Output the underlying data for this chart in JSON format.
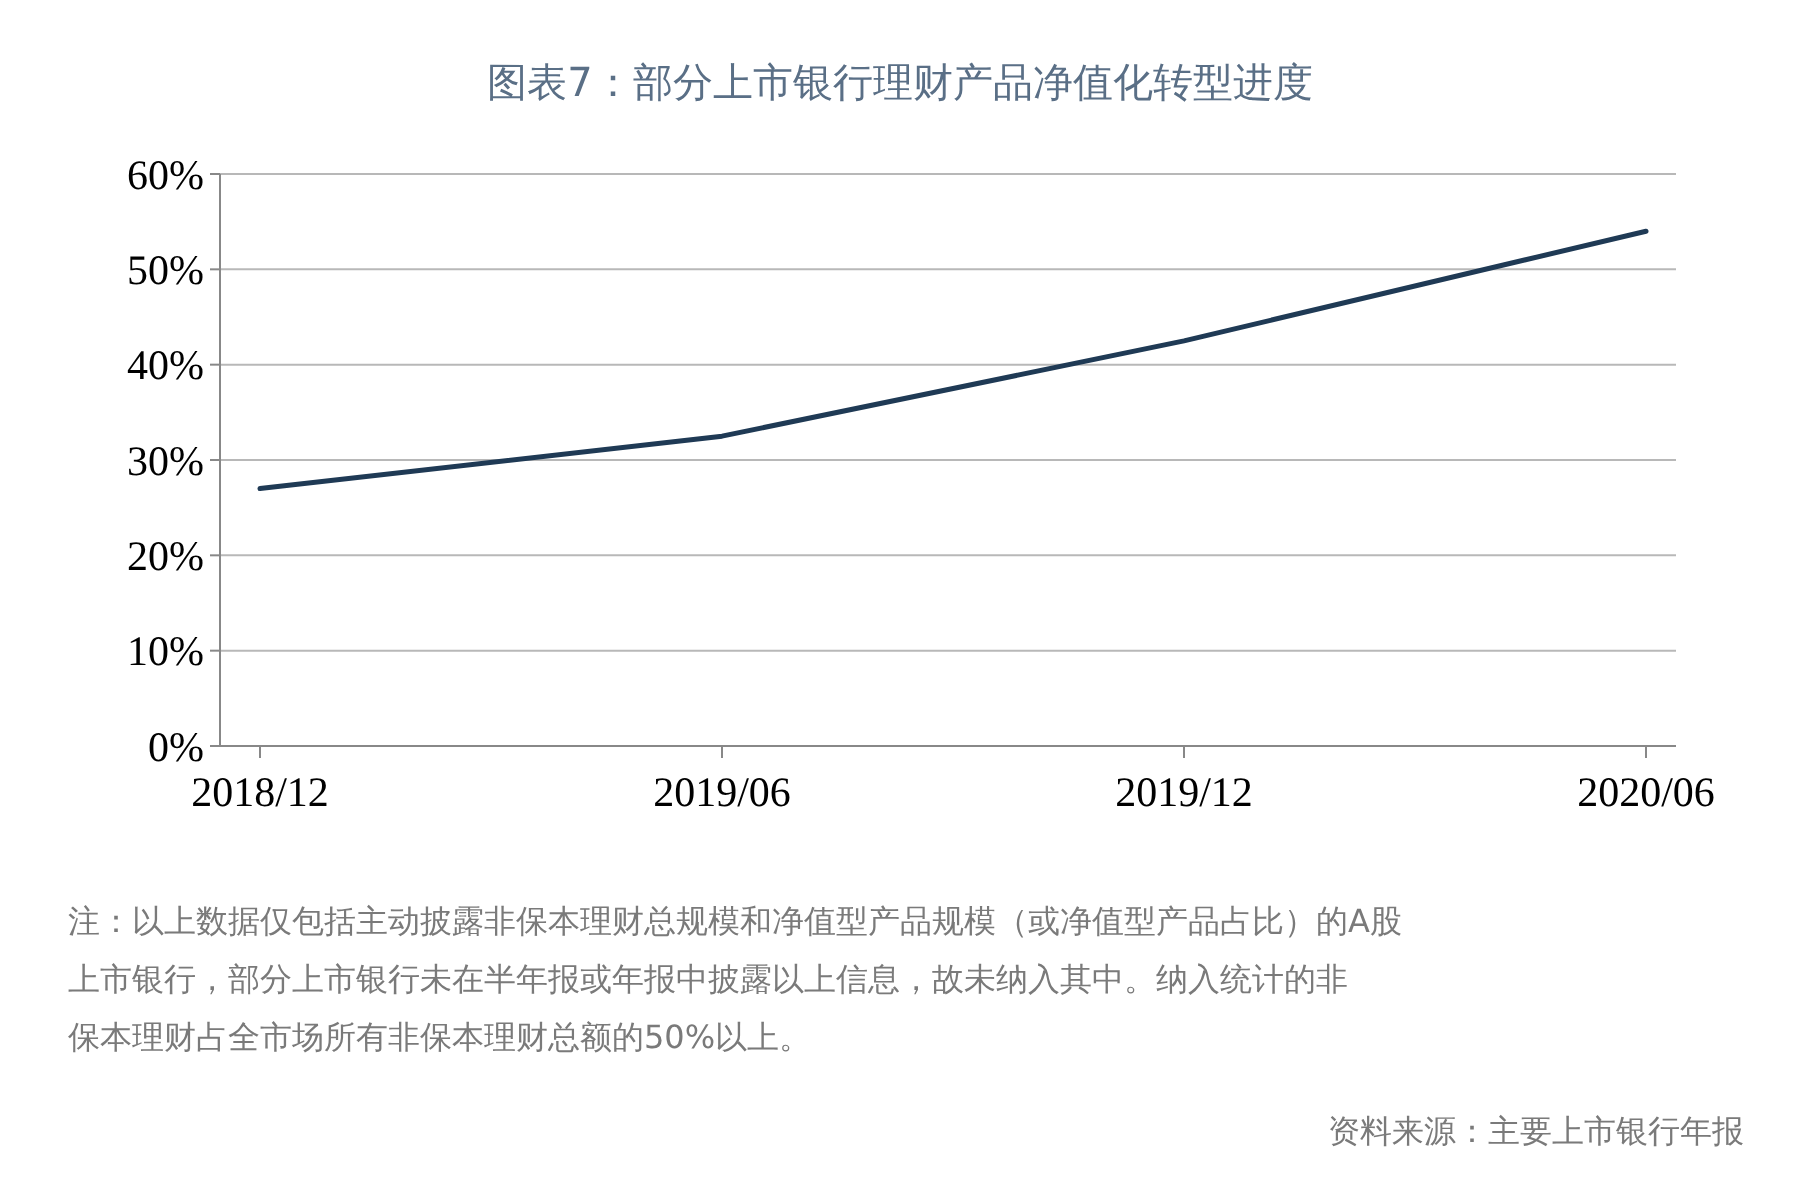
{
  "chart_data": {
    "type": "line",
    "title": "图表7：部分上市银行理财产品净值化转型进度",
    "categories": [
      "2018/12",
      "2019/06",
      "2019/12",
      "2020/06"
    ],
    "series": [
      {
        "color": "#1f3a55",
        "values": [
          27,
          32.5,
          42.5,
          54
        ]
      }
    ],
    "ylim": [
      0,
      60
    ],
    "yticks": [
      {
        "value": 0,
        "label": "0%"
      },
      {
        "value": 10,
        "label": "10%"
      },
      {
        "value": 20,
        "label": "20%"
      },
      {
        "value": 30,
        "label": "30%"
      },
      {
        "value": 40,
        "label": "40%"
      },
      {
        "value": 50,
        "label": "50%"
      },
      {
        "value": 60,
        "label": "60%"
      }
    ],
    "grid": "y",
    "marker": "none",
    "line_style": "solid",
    "annotations": [
      "注：以上数据仅包括主动披露非保本理财总规模和净值型产品规模（或净值型产品占比）的A股上市银行，部分上市银行未在半年报或年报中披露以上信息，故未纳入其中。纳入统计的非保本理财占全市场所有非保本理财总额的50%以上。",
      "资料来源：主要上市银行年报"
    ]
  }
}
